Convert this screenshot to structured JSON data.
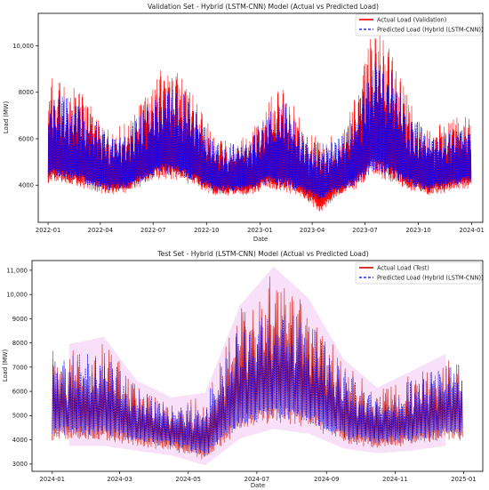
{
  "chart_data": [
    {
      "type": "line",
      "title": "Validation Set - Hybrid (LSTM-CNN) Model (Actual vs Predicted Load)",
      "xlabel": "Date",
      "ylabel": "Load (MW)",
      "x_range": [
        "2021-12-15",
        "2024-01-20"
      ],
      "ylim": [
        2400,
        11400
      ],
      "x_ticks": [
        "2022-01",
        "2022-04",
        "2022-07",
        "2022-10",
        "2023-01",
        "2023-04",
        "2023-07",
        "2023-10",
        "2024-01"
      ],
      "y_ticks": [
        "4000",
        "6000",
        "8000",
        "10,000"
      ],
      "y_tick_values": [
        4000,
        6000,
        8000,
        10000
      ],
      "legend_position": "top-right",
      "series": [
        {
          "name": "Actual Load (Validation)",
          "style": "solid",
          "color": "#ff0000",
          "monthly": [
            {
              "month": "2022-01",
              "low": 4000,
              "high": 8600
            },
            {
              "month": "2022-02",
              "low": 3900,
              "high": 8300
            },
            {
              "month": "2022-03",
              "low": 3700,
              "high": 7500
            },
            {
              "month": "2022-04",
              "low": 3500,
              "high": 6500
            },
            {
              "month": "2022-05",
              "low": 3600,
              "high": 6700
            },
            {
              "month": "2022-06",
              "low": 3900,
              "high": 7800
            },
            {
              "month": "2022-07",
              "low": 4200,
              "high": 9100
            },
            {
              "month": "2022-08",
              "low": 4100,
              "high": 8800
            },
            {
              "month": "2022-09",
              "low": 3800,
              "high": 7600
            },
            {
              "month": "2022-10",
              "low": 3500,
              "high": 6000
            },
            {
              "month": "2022-11",
              "low": 3500,
              "high": 6000
            },
            {
              "month": "2022-12",
              "low": 3500,
              "high": 6200
            },
            {
              "month": "2023-01",
              "low": 3800,
              "high": 7800
            },
            {
              "month": "2023-02",
              "low": 3600,
              "high": 8300
            },
            {
              "month": "2023-03",
              "low": 3400,
              "high": 6500
            },
            {
              "month": "2023-04",
              "low": 2700,
              "high": 6000
            },
            {
              "month": "2023-05",
              "low": 3500,
              "high": 6200
            },
            {
              "month": "2023-06",
              "low": 3700,
              "high": 7900
            },
            {
              "month": "2023-07",
              "low": 4300,
              "high": 11000
            },
            {
              "month": "2023-08",
              "low": 4000,
              "high": 9700
            },
            {
              "month": "2023-09",
              "low": 3700,
              "high": 7600
            },
            {
              "month": "2023-10",
              "low": 3500,
              "high": 6500
            },
            {
              "month": "2023-11",
              "low": 3600,
              "high": 6700
            },
            {
              "month": "2023-12",
              "low": 3800,
              "high": 7000
            }
          ]
        },
        {
          "name": "Predicted Load (Hybrid (LSTM-CNN))",
          "style": "dashed",
          "color": "#0000ff",
          "monthly": [
            {
              "month": "2022-01",
              "low": 4200,
              "high": 7900
            },
            {
              "month": "2022-02",
              "low": 4100,
              "high": 7700
            },
            {
              "month": "2022-03",
              "low": 3900,
              "high": 7100
            },
            {
              "month": "2022-04",
              "low": 3700,
              "high": 6200
            },
            {
              "month": "2022-05",
              "low": 3800,
              "high": 6400
            },
            {
              "month": "2022-06",
              "low": 4100,
              "high": 7300
            },
            {
              "month": "2022-07",
              "low": 4400,
              "high": 8300
            },
            {
              "month": "2022-08",
              "low": 4300,
              "high": 8100
            },
            {
              "month": "2022-09",
              "low": 4000,
              "high": 7200
            },
            {
              "month": "2022-10",
              "low": 3700,
              "high": 5800
            },
            {
              "month": "2022-11",
              "low": 3700,
              "high": 5800
            },
            {
              "month": "2022-12",
              "low": 3700,
              "high": 6000
            },
            {
              "month": "2023-01",
              "low": 4000,
              "high": 7300
            },
            {
              "month": "2023-02",
              "low": 3800,
              "high": 7700
            },
            {
              "month": "2023-03",
              "low": 3600,
              "high": 6300
            },
            {
              "month": "2023-04",
              "low": 3300,
              "high": 5800
            },
            {
              "month": "2023-05",
              "low": 3700,
              "high": 6000
            },
            {
              "month": "2023-06",
              "low": 3900,
              "high": 7400
            },
            {
              "month": "2023-07",
              "low": 4500,
              "high": 9700
            },
            {
              "month": "2023-08",
              "low": 4200,
              "high": 8900
            },
            {
              "month": "2023-09",
              "low": 3900,
              "high": 7200
            },
            {
              "month": "2023-10",
              "low": 3700,
              "high": 6200
            },
            {
              "month": "2023-11",
              "low": 3800,
              "high": 6400
            },
            {
              "month": "2023-12",
              "low": 4000,
              "high": 6700
            }
          ]
        }
      ]
    },
    {
      "type": "line",
      "title": "Test Set - Hybrid (LSTM-CNN) Model (Actual vs Predicted Load)",
      "xlabel": "Date",
      "ylabel": "Load (MW)",
      "x_range": [
        "2023-12-14",
        "2025-01-18"
      ],
      "ylim": [
        2700,
        11400
      ],
      "x_ticks": [
        "2024-01",
        "2024-03",
        "2024-05",
        "2024-07",
        "2024-09",
        "2024-11",
        "2025-01"
      ],
      "y_ticks": [
        "3000",
        "4000",
        "5000",
        "6000",
        "7000",
        "8000",
        "9000",
        "10,000",
        "11,000"
      ],
      "y_tick_values": [
        3000,
        4000,
        5000,
        6000,
        7000,
        8000,
        9000,
        10000,
        11000
      ],
      "legend_position": "top-right",
      "series": [
        {
          "name": "Actual Load (Test)",
          "style": "solid",
          "color": "#ff0000",
          "monthly": [
            {
              "month": "2024-01",
              "low": 3900,
              "high": 7800
            },
            {
              "month": "2024-02",
              "low": 3900,
              "high": 8100
            },
            {
              "month": "2024-03",
              "low": 3700,
              "high": 6300
            },
            {
              "month": "2024-04",
              "low": 3500,
              "high": 5600
            },
            {
              "month": "2024-05",
              "low": 3100,
              "high": 5800
            },
            {
              "month": "2024-06",
              "low": 4200,
              "high": 9400
            },
            {
              "month": "2024-07",
              "low": 4600,
              "high": 11000
            },
            {
              "month": "2024-08",
              "low": 4400,
              "high": 9700
            },
            {
              "month": "2024-09",
              "low": 3800,
              "high": 7200
            },
            {
              "month": "2024-10",
              "low": 3600,
              "high": 6000
            },
            {
              "month": "2024-11",
              "low": 3700,
              "high": 6700
            },
            {
              "month": "2024-12",
              "low": 3900,
              "high": 7400
            }
          ]
        },
        {
          "name": "Predicted Load (Hybrid (LSTM-CNN))",
          "style": "dashed",
          "color": "#0000ff",
          "monthly": [
            {
              "month": "2024-01",
              "low": 4100,
              "high": 7500
            },
            {
              "month": "2024-02",
              "low": 4100,
              "high": 7700
            },
            {
              "month": "2024-03",
              "low": 3900,
              "high": 6100
            },
            {
              "month": "2024-04",
              "low": 3700,
              "high": 5500
            },
            {
              "month": "2024-05",
              "low": 3300,
              "high": 5700
            },
            {
              "month": "2024-06",
              "low": 4400,
              "high": 8700
            },
            {
              "month": "2024-07",
              "low": 4800,
              "high": 9600
            },
            {
              "month": "2024-08",
              "low": 4600,
              "high": 8900
            },
            {
              "month": "2024-09",
              "low": 4000,
              "high": 6900
            },
            {
              "month": "2024-10",
              "low": 3800,
              "high": 5800
            },
            {
              "month": "2024-11",
              "low": 3900,
              "high": 6500
            },
            {
              "month": "2024-12",
              "low": 4100,
              "high": 7100
            }
          ]
        }
      ]
    }
  ]
}
